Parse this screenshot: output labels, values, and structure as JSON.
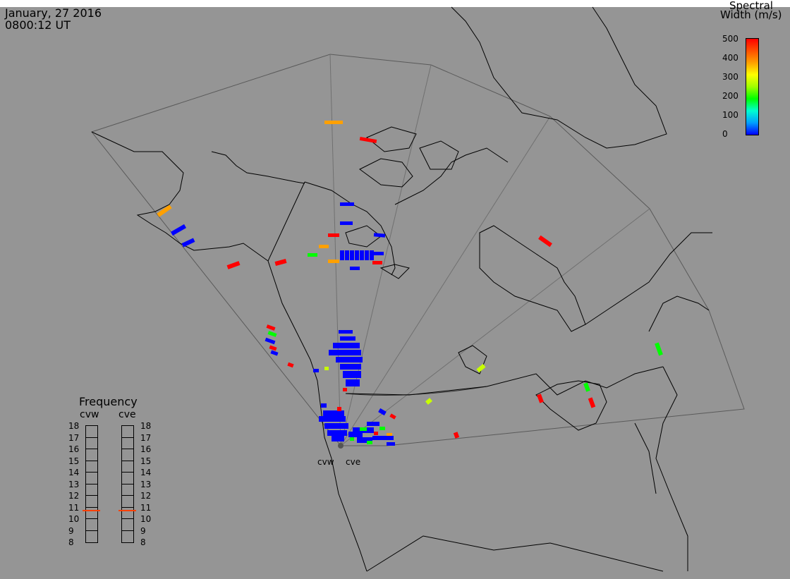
{
  "header": {
    "date": "January, 27 2016",
    "time": "0800:12 UT"
  },
  "colorbar": {
    "title_line1": "Spectral",
    "title_line2": "Width (m/s)",
    "ticks": [
      "500",
      "400",
      "300",
      "200",
      "100",
      "0"
    ],
    "colors": [
      "#0000ff",
      "#00a0ff",
      "#00ffd0",
      "#00ff00",
      "#a0ff00",
      "#ffff00",
      "#ffa000",
      "#ff5000",
      "#ff0000"
    ]
  },
  "frequency_panel": {
    "title": "Frequency",
    "radar_labels": [
      "cvw",
      "cve"
    ],
    "scale": [
      "18",
      "17",
      "16",
      "15",
      "14",
      "13",
      "12",
      "11",
      "10",
      "9",
      "8"
    ],
    "cvw_value": 10.7,
    "cve_value": 10.7,
    "marker_color": "#ff4000"
  },
  "radars": {
    "cvw": "cvw",
    "cve": "cve"
  },
  "colors": {
    "panel_bg": "#959595",
    "low": "#0000ff",
    "mid": "#00ff00",
    "yellow": "#c8ff00",
    "orange": "#ffa000",
    "high": "#ff0000"
  }
}
